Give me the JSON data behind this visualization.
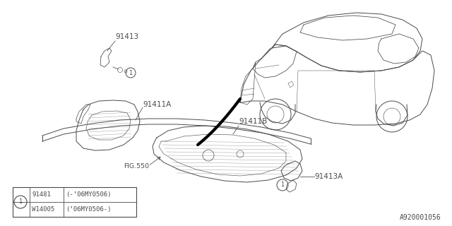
{
  "bg_color": "#ffffff",
  "line_color": "#4a4a4a",
  "part_number_bottom": "A920001056",
  "table_parts": [
    [
      "91481",
      "(-’06MY0506)"
    ],
    [
      "W14005",
      "(’06MY0506-)"
    ]
  ]
}
